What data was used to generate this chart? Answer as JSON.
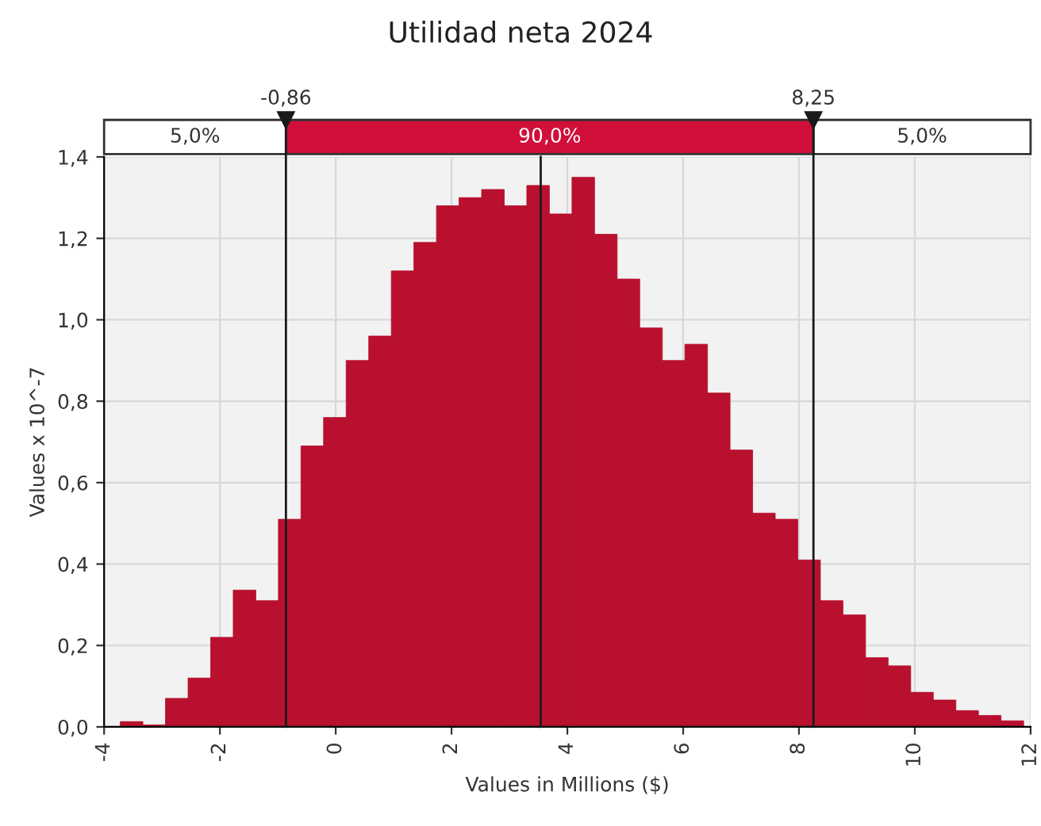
{
  "chart_data": {
    "type": "histogram",
    "title": "Utilidad neta 2024",
    "xlabel": "Values in Millions ($)",
    "ylabel": "Values x 10^-7",
    "bins": [
      -3.72,
      -3.33,
      -2.94,
      -2.55,
      -2.16,
      -1.77,
      -1.38,
      -0.99,
      -0.6,
      -0.21,
      0.18,
      0.57,
      0.96,
      1.35,
      1.74,
      2.13,
      2.52,
      2.91,
      3.3,
      3.69,
      4.08,
      4.47,
      4.86,
      5.25,
      5.64,
      6.03,
      6.42,
      6.81,
      7.2,
      7.59,
      7.98,
      8.37,
      8.76,
      9.15,
      9.54,
      9.93,
      10.32,
      10.71,
      11.1,
      11.49,
      11.88
    ],
    "values": [
      0.013,
      0.005,
      0.07,
      0.12,
      0.22,
      0.336,
      0.31,
      0.51,
      0.69,
      0.76,
      0.9,
      0.96,
      1.12,
      1.19,
      1.28,
      1.3,
      1.32,
      1.28,
      1.33,
      1.26,
      1.35,
      1.21,
      1.1,
      0.98,
      0.9,
      0.94,
      0.82,
      0.68,
      0.525,
      0.51,
      0.41,
      0.31,
      0.275,
      0.17,
      0.15,
      0.085,
      0.066,
      0.04,
      0.028,
      0.015
    ],
    "color": "#b8102e",
    "xlim": [
      -4,
      12
    ],
    "xticks": [
      -4,
      -2,
      0,
      2,
      4,
      6,
      8,
      10,
      12
    ],
    "ylim": [
      0,
      1.4
    ],
    "yticks": [
      {
        "value": 0,
        "label": "0,0"
      },
      {
        "value": 0.2,
        "label": "0,2"
      },
      {
        "value": 0.4,
        "label": "0,4"
      },
      {
        "value": 0.6,
        "label": "0,6"
      },
      {
        "value": 0.8,
        "label": "0,8"
      },
      {
        "value": 1.0,
        "label": "1,0"
      },
      {
        "value": 1.2,
        "label": "1,2"
      },
      {
        "value": 1.4,
        "label": "1,4"
      }
    ],
    "ref_lines": [
      {
        "axis": "x",
        "value": -0.86,
        "label": "-0,86",
        "color": "#1a1a1a"
      },
      {
        "axis": "x",
        "value": 8.25,
        "label": "8,25",
        "color": "#1a1a1a"
      },
      {
        "axis": "x",
        "value": 3.54,
        "label": null,
        "color": "#1a1a1a"
      }
    ],
    "annotations": [
      "5,0%",
      "90,0%",
      "5,0%"
    ],
    "grid": true
  }
}
